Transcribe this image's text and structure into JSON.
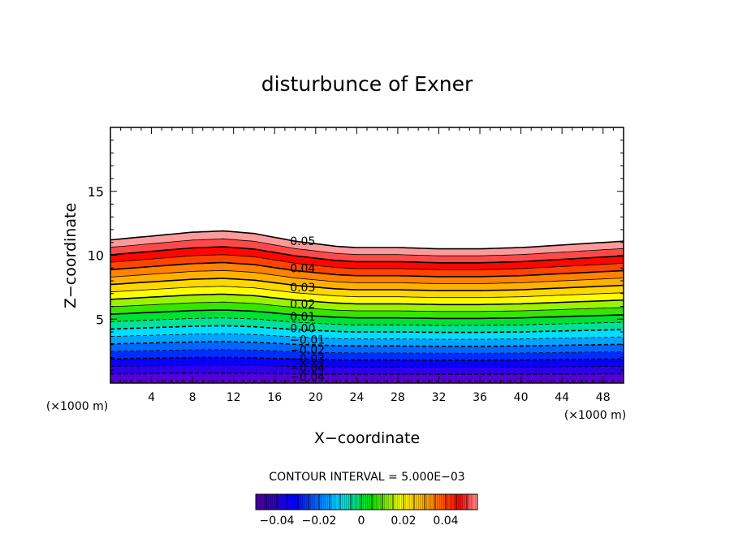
{
  "chart_data": {
    "type": "contour",
    "title": "disturbunce of Exner",
    "xlabel": "X−coordinate",
    "ylabel": "Z−coordinate",
    "x_unit_left": "(×1000 m)",
    "x_unit_right": "(×1000 m)",
    "xlim": [
      0,
      50
    ],
    "ylim": [
      0,
      20
    ],
    "x_ticks": [
      4,
      8,
      12,
      16,
      20,
      24,
      28,
      32,
      36,
      40,
      44,
      48
    ],
    "x_tick_labels": [
      "4",
      "8",
      "12",
      "16",
      "20",
      "24",
      "28",
      "32",
      "36",
      "40",
      "44",
      "48"
    ],
    "y_ticks": [
      5,
      10,
      15
    ],
    "y_tick_labels": [
      "5",
      "10",
      "15"
    ],
    "contour_interval_text": "CONTOUR INTERVAL = 5.000E−03",
    "contour_interval": 0.005,
    "contour_min": -0.045,
    "contour_max": 0.05,
    "field_top_profile": {
      "x": [
        0,
        4,
        8,
        11,
        14,
        18,
        22,
        24,
        28,
        32,
        36,
        40,
        44,
        48,
        50
      ],
      "z": [
        11.2,
        11.5,
        11.8,
        11.9,
        11.7,
        11.1,
        10.7,
        10.6,
        10.6,
        10.5,
        10.5,
        10.6,
        10.8,
        11.0,
        11.1
      ]
    },
    "contour_labels": [
      {
        "text": "0.05",
        "x": 17.5,
        "z": 11.1
      },
      {
        "text": "0.04",
        "x": 17.5,
        "z": 9.0
      },
      {
        "text": "0.03",
        "x": 17.5,
        "z": 7.5
      },
      {
        "text": "0.02",
        "x": 17.5,
        "z": 6.2
      },
      {
        "text": "0.01",
        "x": 17.5,
        "z": 5.2
      },
      {
        "text": "0.00",
        "x": 17.5,
        "z": 4.3
      },
      {
        "text": "−0.01",
        "x": 17.5,
        "z": 3.4
      },
      {
        "text": "−0.02",
        "x": 17.5,
        "z": 2.6
      },
      {
        "text": "−0.03",
        "x": 17.5,
        "z": 1.9
      },
      {
        "text": "−0.04",
        "x": 17.5,
        "z": 1.2
      },
      {
        "text": "−0.04",
        "x": 17.5,
        "z": 0.5
      }
    ],
    "colorbar": {
      "min": -0.05,
      "max": 0.055,
      "tick_values": [
        -0.04,
        -0.02,
        0,
        0.02,
        0.04
      ],
      "tick_labels": [
        "−0.04",
        "−0.02",
        "0",
        "0.02",
        "0.04"
      ]
    },
    "colors": {
      "purple": "#7a00c8",
      "blue": "#0000ff",
      "cyan": "#00e0ff",
      "green": "#00e000",
      "yellow": "#ffff00",
      "orange": "#ff9900",
      "red": "#ff0000",
      "pink": "#ff9a9a"
    }
  }
}
